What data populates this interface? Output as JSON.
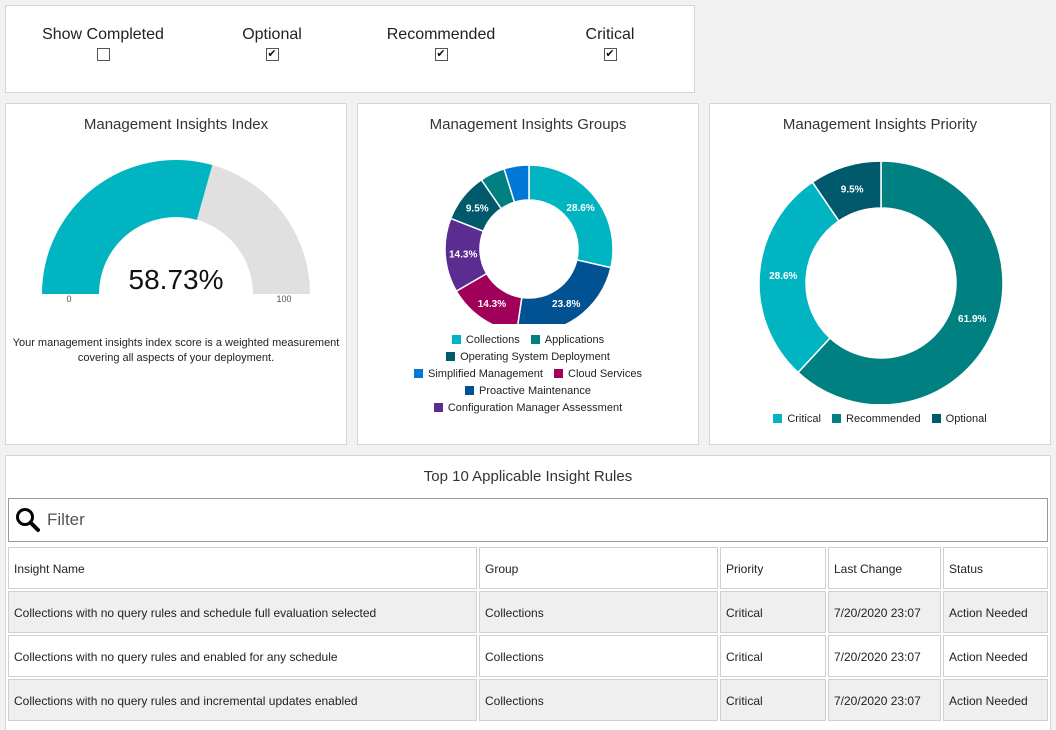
{
  "filters": {
    "show_completed": {
      "label": "Show Completed",
      "checked": false
    },
    "optional": {
      "label": "Optional",
      "checked": true
    },
    "recommended": {
      "label": "Recommended",
      "checked": true
    },
    "critical": {
      "label": "Critical",
      "checked": true
    }
  },
  "index_card": {
    "title": "Management Insights Index",
    "value_text": "58.73%",
    "min_label": "0",
    "max_label": "100",
    "description_line1": "Your management insights index score is a weighted measurement",
    "description_line2": "covering all aspects of your deployment.",
    "colors": {
      "fill": "#00b5c1",
      "track": "#e0e0e0"
    }
  },
  "groups_card": {
    "title": "Management Insights Groups",
    "legend": {
      "collections": "Collections",
      "applications": "Applications",
      "osd": "Operating System Deployment",
      "simplified": "Simplified Management",
      "cloud": "Cloud Services",
      "proactive": "Proactive Maintenance",
      "cm_assessment": "Configuration Manager Assessment"
    }
  },
  "priority_card": {
    "title": "Management Insights Priority",
    "legend": {
      "critical": "Critical",
      "recommended": "Recommended",
      "optional": "Optional"
    }
  },
  "chart_data": [
    {
      "type": "gauge",
      "title": "Management Insights Index",
      "value": 58.73,
      "min": 0,
      "max": 100,
      "value_label": "58.73%"
    },
    {
      "type": "pie",
      "title": "Management Insights Groups",
      "labels": [
        "Collections",
        "Proactive Maintenance",
        "Cloud Services",
        "Configuration Manager Assessment",
        "Operating System Deployment",
        "Applications",
        "Simplified Management"
      ],
      "values": [
        28.6,
        23.8,
        14.3,
        14.3,
        9.5,
        4.8,
        4.8
      ],
      "data_labels": [
        "28.6%",
        "23.8%",
        "14.3%",
        "14.3%",
        "9.5%",
        "",
        ""
      ],
      "colors": [
        "#00b5c1",
        "#005293",
        "#a0005a",
        "#5c2d91",
        "#005a6b",
        "#008080",
        "#0078d7"
      ]
    },
    {
      "type": "pie",
      "title": "Management Insights Priority",
      "labels": [
        "Recommended",
        "Critical",
        "Optional"
      ],
      "values": [
        61.9,
        28.6,
        9.5
      ],
      "data_labels": [
        "61.9%",
        "28.6%",
        "9.5%"
      ],
      "colors": [
        "#008080",
        "#00b5c1",
        "#005a6b"
      ]
    }
  ],
  "rules": {
    "title": "Top 10 Applicable Insight Rules",
    "filter_placeholder": "Filter",
    "headers": [
      "Insight Name",
      "Group",
      "Priority",
      "Last Change",
      "Status"
    ],
    "rows": [
      [
        "Collections with no query rules and schedule full evaluation selected",
        "Collections",
        "Critical",
        "7/20/2020 23:07",
        "Action Needed"
      ],
      [
        "Collections with no query rules and enabled for any schedule",
        "Collections",
        "Critical",
        "7/20/2020 23:07",
        "Action Needed"
      ],
      [
        "Collections with no query rules and incremental updates enabled",
        "Collections",
        "Critical",
        "7/20/2020 23:07",
        "Action Needed"
      ]
    ]
  }
}
